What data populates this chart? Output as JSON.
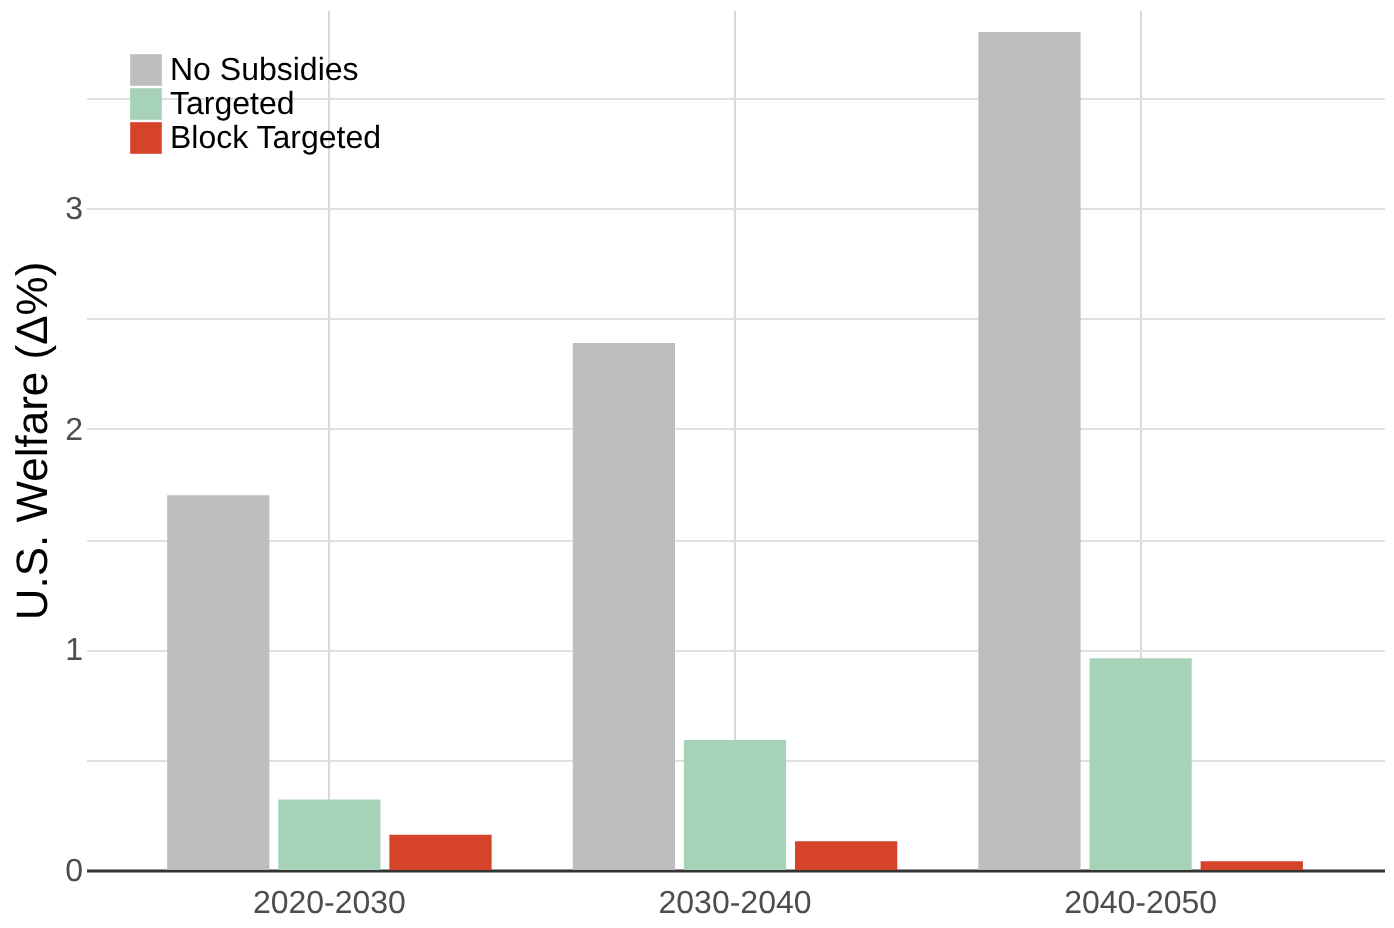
{
  "chart_data": {
    "type": "bar",
    "ylabel": "U.S. Welfare (Δ%)",
    "categories": [
      "2020-2030",
      "2030-2040",
      "2040-2050"
    ],
    "series": [
      {
        "name": "No Subsidies",
        "color": "#bebebe",
        "values": [
          1.7,
          2.39,
          3.8
        ]
      },
      {
        "name": "Targeted",
        "color": "#a6d3b7",
        "values": [
          0.32,
          0.59,
          0.96
        ]
      },
      {
        "name": "Block Targeted",
        "color": "#d5432b",
        "values": [
          0.16,
          0.13,
          0.04
        ]
      }
    ],
    "ylim": [
      0,
      3.9
    ],
    "yticks": [
      0,
      {
        "value": 0.5,
        "label": null
      },
      1,
      {
        "value": 1.5,
        "label": null
      },
      2,
      {
        "value": 2.5,
        "label": null
      },
      3,
      {
        "value": 3.5,
        "label": null
      }
    ],
    "grid": true,
    "legend": "top left"
  }
}
